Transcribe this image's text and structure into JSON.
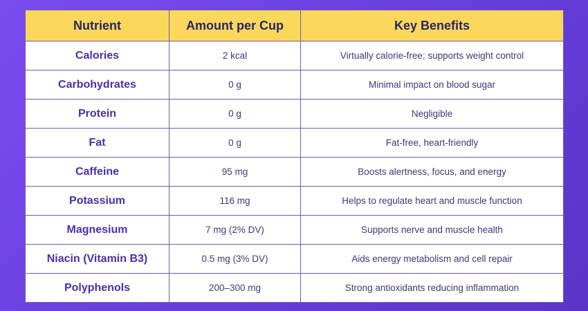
{
  "table": {
    "headers": [
      "Nutrient",
      "Amount per Cup",
      "Key Benefits"
    ],
    "rows": [
      {
        "nutrient": "Calories",
        "amount": "2 kcal",
        "benefit": "Virtually calorie-free; supports weight control"
      },
      {
        "nutrient": "Carbohydrates",
        "amount": "0 g",
        "benefit": "Minimal impact on blood sugar"
      },
      {
        "nutrient": "Protein",
        "amount": "0 g",
        "benefit": "Negligible"
      },
      {
        "nutrient": "Fat",
        "amount": "0 g",
        "benefit": "Fat-free, heart-friendly"
      },
      {
        "nutrient": "Caffeine",
        "amount": "95 mg",
        "benefit": "Boosts alertness, focus, and energy"
      },
      {
        "nutrient": "Potassium",
        "amount": "116 mg",
        "benefit": "Helps to regulate heart and muscle function"
      },
      {
        "nutrient": "Magnesium",
        "amount": "7 mg (2% DV)",
        "benefit": "Supports nerve and muscle health"
      },
      {
        "nutrient": "Niacin (Vitamin B3)",
        "amount": "0.5 mg (3% DV)",
        "benefit": "Aids energy metabolism and cell repair"
      },
      {
        "nutrient": "Polyphenols",
        "amount": "200–300 mg",
        "benefit": "Strong antioxidants reducing inflammation"
      }
    ]
  },
  "colors": {
    "header_bg": "#fbd85c",
    "nutrient_text": "#4a2fa8",
    "background_gradient_start": "#7a4df0",
    "background_gradient_end": "#5a34c8"
  }
}
